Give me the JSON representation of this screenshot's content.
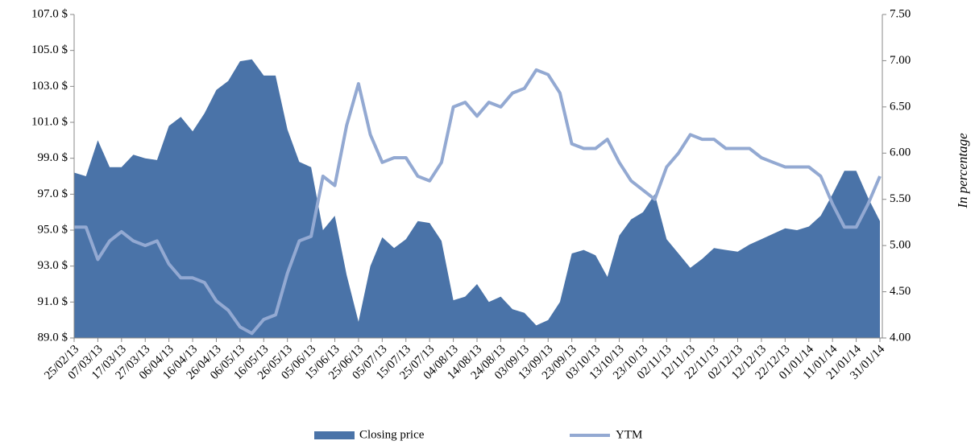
{
  "chart_data": {
    "type": "area_line",
    "categories": [
      "25/02/13",
      null,
      "07/03/13",
      null,
      "17/03/13",
      null,
      "27/03/13",
      null,
      "06/04/13",
      null,
      "16/04/13",
      null,
      "26/04/13",
      null,
      "06/05/13",
      null,
      "16/05/13",
      null,
      "26/05/13",
      null,
      "05/06/13",
      null,
      "15/06/13",
      null,
      "25/06/13",
      null,
      "05/07/13",
      null,
      "15/07/13",
      null,
      "25/07/13",
      null,
      "04/08/13",
      null,
      "14/08/13",
      null,
      "24/08/13",
      null,
      "03/09/13",
      null,
      "13/09/13",
      null,
      "23/09/13",
      null,
      "03/10/13",
      null,
      "13/10/13",
      null,
      "23/10/13",
      null,
      "02/11/13",
      null,
      "12/11/13",
      null,
      "22/11/13",
      null,
      "02/12/13",
      null,
      "12/12/13",
      null,
      "22/12/13",
      null,
      "01/01/14",
      null,
      "11/01/14",
      null,
      "21/01/14",
      null,
      "31/01/14"
    ],
    "series": [
      {
        "name": "Closing price",
        "color": "#4a73a8",
        "axis": "y",
        "values": [
          98.2,
          98.0,
          100.0,
          98.5,
          98.5,
          99.2,
          99.0,
          98.9,
          100.8,
          101.3,
          100.5,
          101.5,
          102.8,
          103.3,
          104.4,
          104.5,
          103.6,
          103.6,
          100.6,
          98.8,
          98.5,
          95.0,
          95.8,
          92.5,
          89.9,
          93.0,
          94.6,
          94.0,
          94.5,
          95.5,
          95.4,
          94.4,
          91.1,
          91.3,
          92.0,
          91.0,
          91.3,
          90.6,
          90.4,
          89.7,
          90.0,
          91.0,
          93.7,
          93.9,
          93.6,
          92.4,
          94.7,
          95.6,
          96.0,
          97.0,
          94.5,
          93.7,
          92.9,
          93.4,
          94.0,
          93.9,
          93.8,
          94.2,
          94.5,
          94.8,
          95.1,
          95.0,
          95.2,
          95.8,
          97.0,
          98.3,
          98.3,
          96.8,
          95.5
        ]
      },
      {
        "name": "YTM",
        "color": "#93a9d2",
        "axis": "y2",
        "values": [
          5.2,
          5.2,
          4.85,
          5.05,
          5.15,
          5.05,
          5.0,
          5.05,
          4.8,
          4.65,
          4.65,
          4.6,
          4.4,
          4.3,
          4.12,
          4.05,
          4.2,
          4.25,
          4.7,
          5.05,
          5.1,
          5.75,
          5.65,
          6.3,
          6.75,
          6.2,
          5.9,
          5.95,
          5.95,
          5.75,
          5.7,
          5.9,
          6.5,
          6.55,
          6.4,
          6.55,
          6.5,
          6.65,
          6.7,
          6.9,
          6.85,
          6.65,
          6.1,
          6.05,
          6.05,
          6.15,
          5.9,
          5.7,
          5.6,
          5.5,
          5.85,
          6.0,
          6.2,
          6.15,
          6.15,
          6.05,
          6.05,
          6.05,
          5.95,
          5.9,
          5.85,
          5.85,
          5.85,
          5.75,
          5.45,
          5.2,
          5.2,
          5.45,
          5.75
        ]
      }
    ],
    "ylim": [
      89,
      107
    ],
    "yticks": [
      {
        "value": 89,
        "label": "89.0 $"
      },
      {
        "value": 91,
        "label": "91.0 $"
      },
      {
        "value": 93,
        "label": "93.0 $"
      },
      {
        "value": 95,
        "label": "95.0 $"
      },
      {
        "value": 97,
        "label": "97.0 $"
      },
      {
        "value": 99,
        "label": "99.0 $"
      },
      {
        "value": 101,
        "label": "101.0 $"
      },
      {
        "value": 103,
        "label": "103.0 $"
      },
      {
        "value": 105,
        "label": "105.0 $"
      },
      {
        "value": 107,
        "label": "107.0 $"
      }
    ],
    "y2lim": [
      4,
      7.5
    ],
    "y2ticks": [
      {
        "value": 4,
        "label": "4.00"
      },
      {
        "value": 4.5,
        "label": "4.50"
      },
      {
        "value": 5,
        "label": "5.00"
      },
      {
        "value": 5.5,
        "label": "5.50"
      },
      {
        "value": 6,
        "label": "6.00"
      },
      {
        "value": 6.5,
        "label": "6.50"
      },
      {
        "value": 7,
        "label": "7.00"
      },
      {
        "value": 7.5,
        "label": "7.50"
      }
    ],
    "y2label": "In percentage",
    "legend": "bottom"
  }
}
